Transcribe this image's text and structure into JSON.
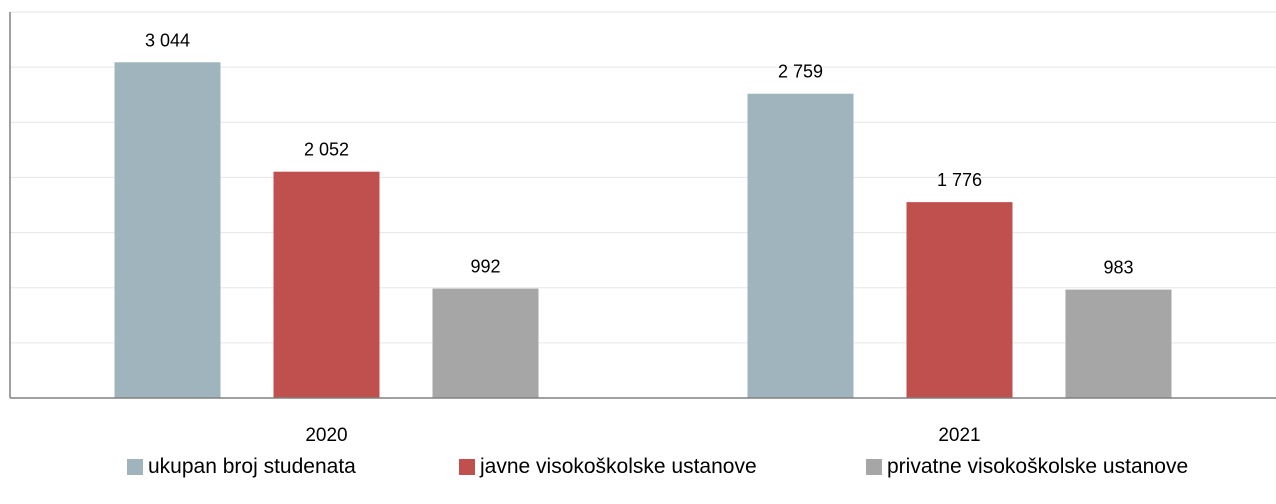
{
  "chart_data": {
    "type": "bar",
    "categories": [
      "2020",
      "2021"
    ],
    "series": [
      {
        "name": "ukupan broj studenata",
        "values": [
          3044,
          2759
        ],
        "labels": [
          "3 044",
          "2 759"
        ],
        "color": "#9FB4BC"
      },
      {
        "name": "javne visokoškolske ustanove",
        "values": [
          2052,
          1776
        ],
        "labels": [
          "2 052",
          "1 776"
        ],
        "color": "#C0504D"
      },
      {
        "name": "privatne visokoškolske ustanove",
        "values": [
          992,
          983
        ],
        "labels": [
          "992",
          "983"
        ],
        "color": "#A6A6A6"
      }
    ],
    "title": "",
    "xlabel": "",
    "ylabel": "",
    "ylim": [
      0,
      3500
    ],
    "grid": true,
    "legend_position": "bottom"
  }
}
